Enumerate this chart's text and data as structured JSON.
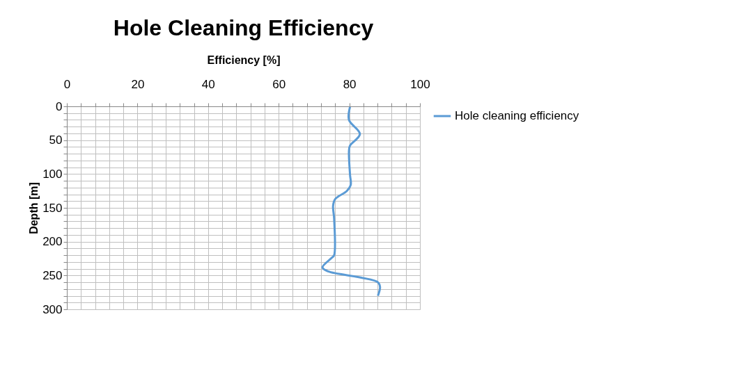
{
  "chart_data": {
    "type": "line",
    "title": "Hole Cleaning Efficiency",
    "xlabel": "Efficiency [%]",
    "ylabel": "Depth [m]",
    "xlim": [
      0,
      100
    ],
    "xticks": [
      0,
      {
        "value": 4,
        "label": null
      },
      {
        "value": 8,
        "label": null
      },
      {
        "value": 12,
        "label": null
      },
      {
        "value": 16,
        "label": null
      },
      20,
      {
        "value": 24,
        "label": null
      },
      {
        "value": 28,
        "label": null
      },
      {
        "value": 32,
        "label": null
      },
      {
        "value": 36,
        "label": null
      },
      40,
      {
        "value": 44,
        "label": null
      },
      {
        "value": 48,
        "label": null
      },
      {
        "value": 52,
        "label": null
      },
      {
        "value": 56,
        "label": null
      },
      60,
      {
        "value": 64,
        "label": null
      },
      {
        "value": 68,
        "label": null
      },
      {
        "value": 72,
        "label": null
      },
      {
        "value": 76,
        "label": null
      },
      80,
      {
        "value": 84,
        "label": null
      },
      {
        "value": 88,
        "label": null
      },
      {
        "value": 92,
        "label": null
      },
      {
        "value": 96,
        "label": null
      },
      100
    ],
    "ylim": [
      300,
      0
    ],
    "yticks": [
      0,
      {
        "value": 10,
        "label": null
      },
      {
        "value": 20,
        "label": null
      },
      {
        "value": 30,
        "label": null
      },
      {
        "value": 40,
        "label": null
      },
      50,
      {
        "value": 60,
        "label": null
      },
      {
        "value": 70,
        "label": null
      },
      {
        "value": 80,
        "label": null
      },
      {
        "value": 90,
        "label": null
      },
      100,
      {
        "value": 110,
        "label": null
      },
      {
        "value": 120,
        "label": null
      },
      {
        "value": 130,
        "label": null
      },
      {
        "value": 140,
        "label": null
      },
      150,
      {
        "value": 160,
        "label": null
      },
      {
        "value": 170,
        "label": null
      },
      {
        "value": 180,
        "label": null
      },
      {
        "value": 190,
        "label": null
      },
      200,
      {
        "value": 210,
        "label": null
      },
      {
        "value": 220,
        "label": null
      },
      {
        "value": 230,
        "label": null
      },
      {
        "value": 240,
        "label": null
      },
      250,
      {
        "value": 260,
        "label": null
      },
      {
        "value": 270,
        "label": null
      },
      {
        "value": 280,
        "label": null
      },
      {
        "value": 290,
        "label": null
      },
      300
    ],
    "grid": true,
    "legend": "right",
    "marker": "none",
    "line_style": "solid",
    "series": [
      {
        "name": "Hole cleaning efficiency",
        "color": "#5b9bd5",
        "x": [
          80.2,
          79.9,
          83.0,
          80.2,
          79.9,
          80.2,
          80.4,
          79.3,
          76.0,
          75.4,
          75.7,
          75.7,
          75.0,
          72.4,
          74.0,
          83.2,
          88.1,
          88.7,
          88.1
        ],
        "values": [
          1,
          20,
          41,
          58,
          66,
          101,
          116,
          125,
          137,
          147,
          166,
          220,
          224,
          238,
          244,
          253,
          260,
          267,
          280
        ]
      }
    ]
  }
}
